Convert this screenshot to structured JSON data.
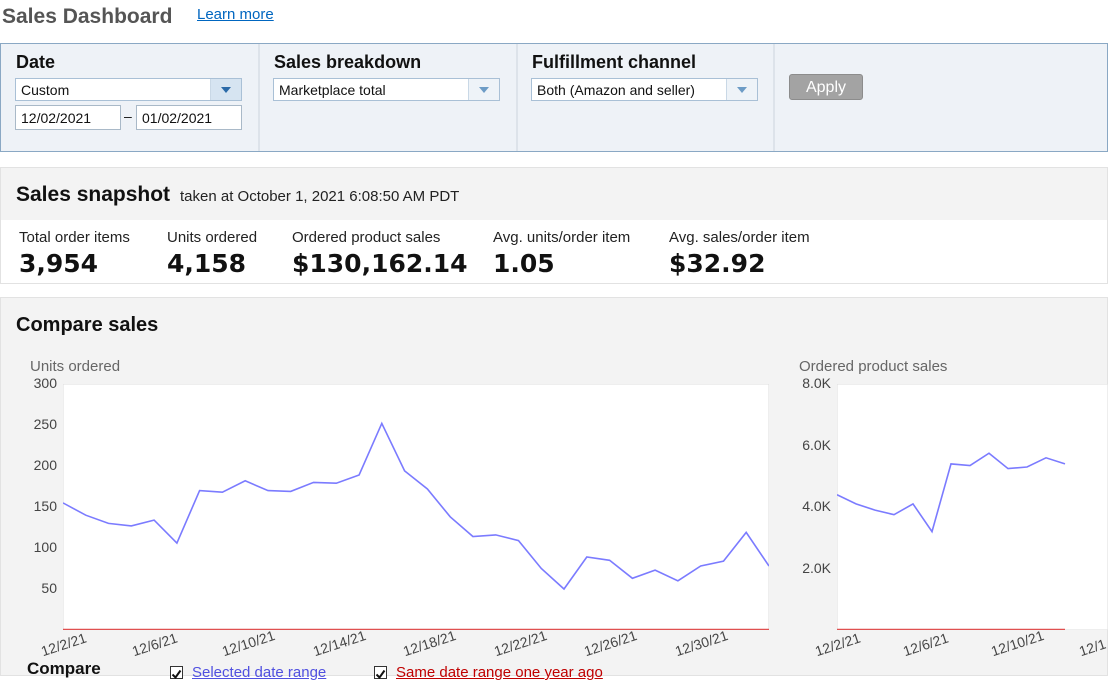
{
  "header": {
    "title": "Sales Dashboard",
    "learn_more": "Learn more"
  },
  "filters": {
    "date": {
      "label": "Date",
      "value": "Custom",
      "start": "12/02/2021",
      "separator": "–",
      "end": "01/02/2021"
    },
    "breakdown": {
      "label": "Sales breakdown",
      "value": "Marketplace total"
    },
    "channel": {
      "label": "Fulfillment channel",
      "value": "Both (Amazon and seller)"
    },
    "apply_label": "Apply"
  },
  "snapshot": {
    "title": "Sales snapshot",
    "subtitle": "taken at October 1, 2021 6:08:50 AM PDT",
    "metrics": [
      {
        "label": "Total order items",
        "value": "3,954"
      },
      {
        "label": "Units ordered",
        "value": "4,158"
      },
      {
        "label": "Ordered product sales",
        "value": "$130,162.14"
      },
      {
        "label": "Avg. units/order item",
        "value": "1.05"
      },
      {
        "label": "Avg. sales/order item",
        "value": "$32.92"
      }
    ]
  },
  "compare": {
    "title": "Compare sales",
    "legend": {
      "title": "Compare",
      "selected": "Selected date range",
      "year_ago": "Same date range one year ago"
    }
  },
  "colors": {
    "selected": "#7b7bff",
    "year_ago": "#e05050",
    "accent": "#0066c0"
  },
  "chart_data": [
    {
      "type": "line",
      "title": "Units ordered",
      "ylim": [
        0,
        300
      ],
      "yticks": [
        "300",
        "250",
        "200",
        "150",
        "100",
        "50"
      ],
      "xticklabels": [
        "12/2/21",
        "12/6/21",
        "12/10/21",
        "12/14/21",
        "12/18/21",
        "12/22/21",
        "12/26/21",
        "12/30/21"
      ],
      "series": [
        {
          "name": "Selected date range",
          "values": [
            155,
            140,
            130,
            127,
            134,
            106,
            170,
            168,
            182,
            170,
            169,
            180,
            179,
            189,
            252,
            194,
            172,
            138,
            114,
            116,
            109,
            75,
            50,
            89,
            85,
            63,
            73,
            60,
            78,
            84,
            119,
            78
          ]
        },
        {
          "name": "Same date range one year ago",
          "values": [
            0,
            0,
            0,
            0,
            0,
            0,
            0,
            0,
            0,
            0,
            0,
            0,
            0,
            0,
            0,
            0,
            0,
            0,
            0,
            0,
            0,
            0,
            0,
            0,
            0,
            0,
            0,
            0,
            0,
            0,
            0,
            0
          ]
        }
      ]
    },
    {
      "type": "line",
      "title": "Ordered product sales",
      "ylim": [
        0,
        8000
      ],
      "yticks": [
        "8.0K",
        "6.0K",
        "4.0K",
        "2.0K"
      ],
      "xticklabels": [
        "12/2/21",
        "12/6/21",
        "12/10/21",
        "12/1"
      ],
      "series": [
        {
          "name": "Selected date range",
          "values": [
            4400,
            4100,
            3900,
            3750,
            4100,
            3200,
            5400,
            5350,
            5750,
            5250,
            5300,
            5600,
            5400
          ]
        },
        {
          "name": "Same date range one year ago",
          "values": [
            0,
            0,
            0,
            0,
            0,
            0,
            0,
            0,
            0,
            0,
            0,
            0,
            0
          ]
        }
      ]
    }
  ]
}
